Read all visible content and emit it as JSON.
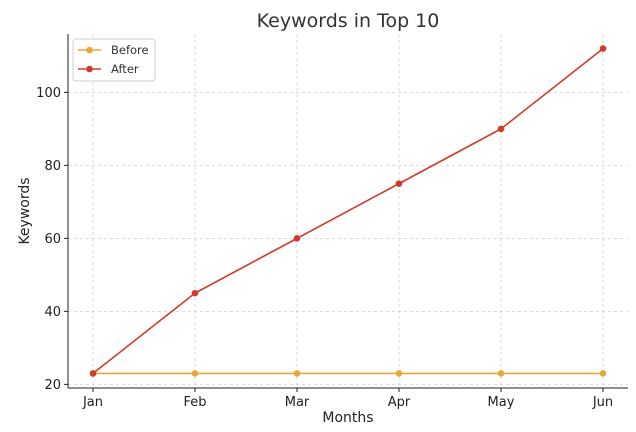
{
  "chart_data": {
    "type": "line",
    "title": "Keywords in Top 10",
    "xlabel": "Months",
    "ylabel": "Keywords",
    "categories": [
      "Jan",
      "Feb",
      "Mar",
      "Apr",
      "May",
      "Jun"
    ],
    "ylim": [
      19,
      116
    ],
    "yticks": [
      20,
      40,
      60,
      80,
      100
    ],
    "grid": true,
    "legend_position": "top-left",
    "series": [
      {
        "name": "Before",
        "color": "#e8a838",
        "values": [
          23,
          23,
          23,
          23,
          23,
          23
        ]
      },
      {
        "name": "After",
        "color": "#d03b2a",
        "values": [
          23,
          45,
          60,
          75,
          90,
          112
        ]
      }
    ]
  }
}
